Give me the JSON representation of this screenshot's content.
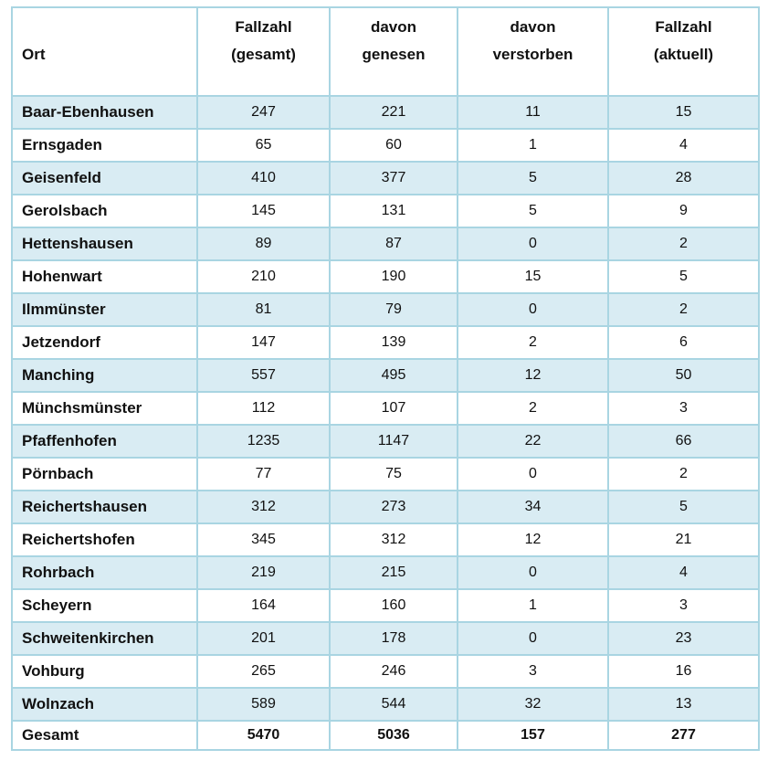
{
  "table": {
    "columns": [
      {
        "id": "ort",
        "lines": [
          "Ort"
        ]
      },
      {
        "id": "fallzahl-gesamt",
        "lines": [
          "Fallzahl",
          "(gesamt)"
        ]
      },
      {
        "id": "davon-genesen",
        "lines": [
          "davon",
          "genesen"
        ]
      },
      {
        "id": "davon-verstorben",
        "lines": [
          "davon",
          "verstorben"
        ]
      },
      {
        "id": "fallzahl-aktuell",
        "lines": [
          "Fallzahl",
          "(aktuell)"
        ]
      }
    ],
    "rows": [
      {
        "ort": "Baar-Ebenhausen",
        "values": [
          "247",
          "221",
          "11",
          "15"
        ]
      },
      {
        "ort": "Ernsgaden",
        "values": [
          "65",
          "60",
          "1",
          "4"
        ]
      },
      {
        "ort": "Geisenfeld",
        "values": [
          "410",
          "377",
          "5",
          "28"
        ]
      },
      {
        "ort": "Gerolsbach",
        "values": [
          "145",
          "131",
          "5",
          "9"
        ]
      },
      {
        "ort": "Hettenshausen",
        "values": [
          "89",
          "87",
          "0",
          "2"
        ]
      },
      {
        "ort": "Hohenwart",
        "values": [
          "210",
          "190",
          "15",
          "5"
        ]
      },
      {
        "ort": "Ilmmünster",
        "values": [
          "81",
          "79",
          "0",
          "2"
        ]
      },
      {
        "ort": "Jetzendorf",
        "values": [
          "147",
          "139",
          "2",
          "6"
        ]
      },
      {
        "ort": "Manching",
        "values": [
          "557",
          "495",
          "12",
          "50"
        ]
      },
      {
        "ort": "Münchsmünster",
        "values": [
          "112",
          "107",
          "2",
          "3"
        ]
      },
      {
        "ort": "Pfaffenhofen",
        "values": [
          "1235",
          "1147",
          "22",
          "66"
        ]
      },
      {
        "ort": "Pörnbach",
        "values": [
          "77",
          "75",
          "0",
          "2"
        ]
      },
      {
        "ort": "Reichertshausen",
        "values": [
          "312",
          "273",
          "34",
          "5"
        ]
      },
      {
        "ort": "Reichertshofen",
        "values": [
          "345",
          "312",
          "12",
          "21"
        ]
      },
      {
        "ort": "Rohrbach",
        "values": [
          "219",
          "215",
          "0",
          "4"
        ]
      },
      {
        "ort": "Scheyern",
        "values": [
          "164",
          "160",
          "1",
          "3"
        ]
      },
      {
        "ort": "Schweitenkirchen",
        "values": [
          "201",
          "178",
          "0",
          "23"
        ]
      },
      {
        "ort": "Vohburg",
        "values": [
          "265",
          "246",
          "3",
          "16"
        ]
      },
      {
        "ort": "Wolnzach",
        "values": [
          "589",
          "544",
          "32",
          "13"
        ]
      }
    ],
    "total_row": {
      "ort": "Gesamt",
      "values": [
        "5470",
        "5036",
        "157",
        "277"
      ]
    }
  },
  "colors": {
    "row_shade": "#d9ecf3",
    "border": "#a9d5e2",
    "text": "#111111",
    "background": "#ffffff"
  }
}
